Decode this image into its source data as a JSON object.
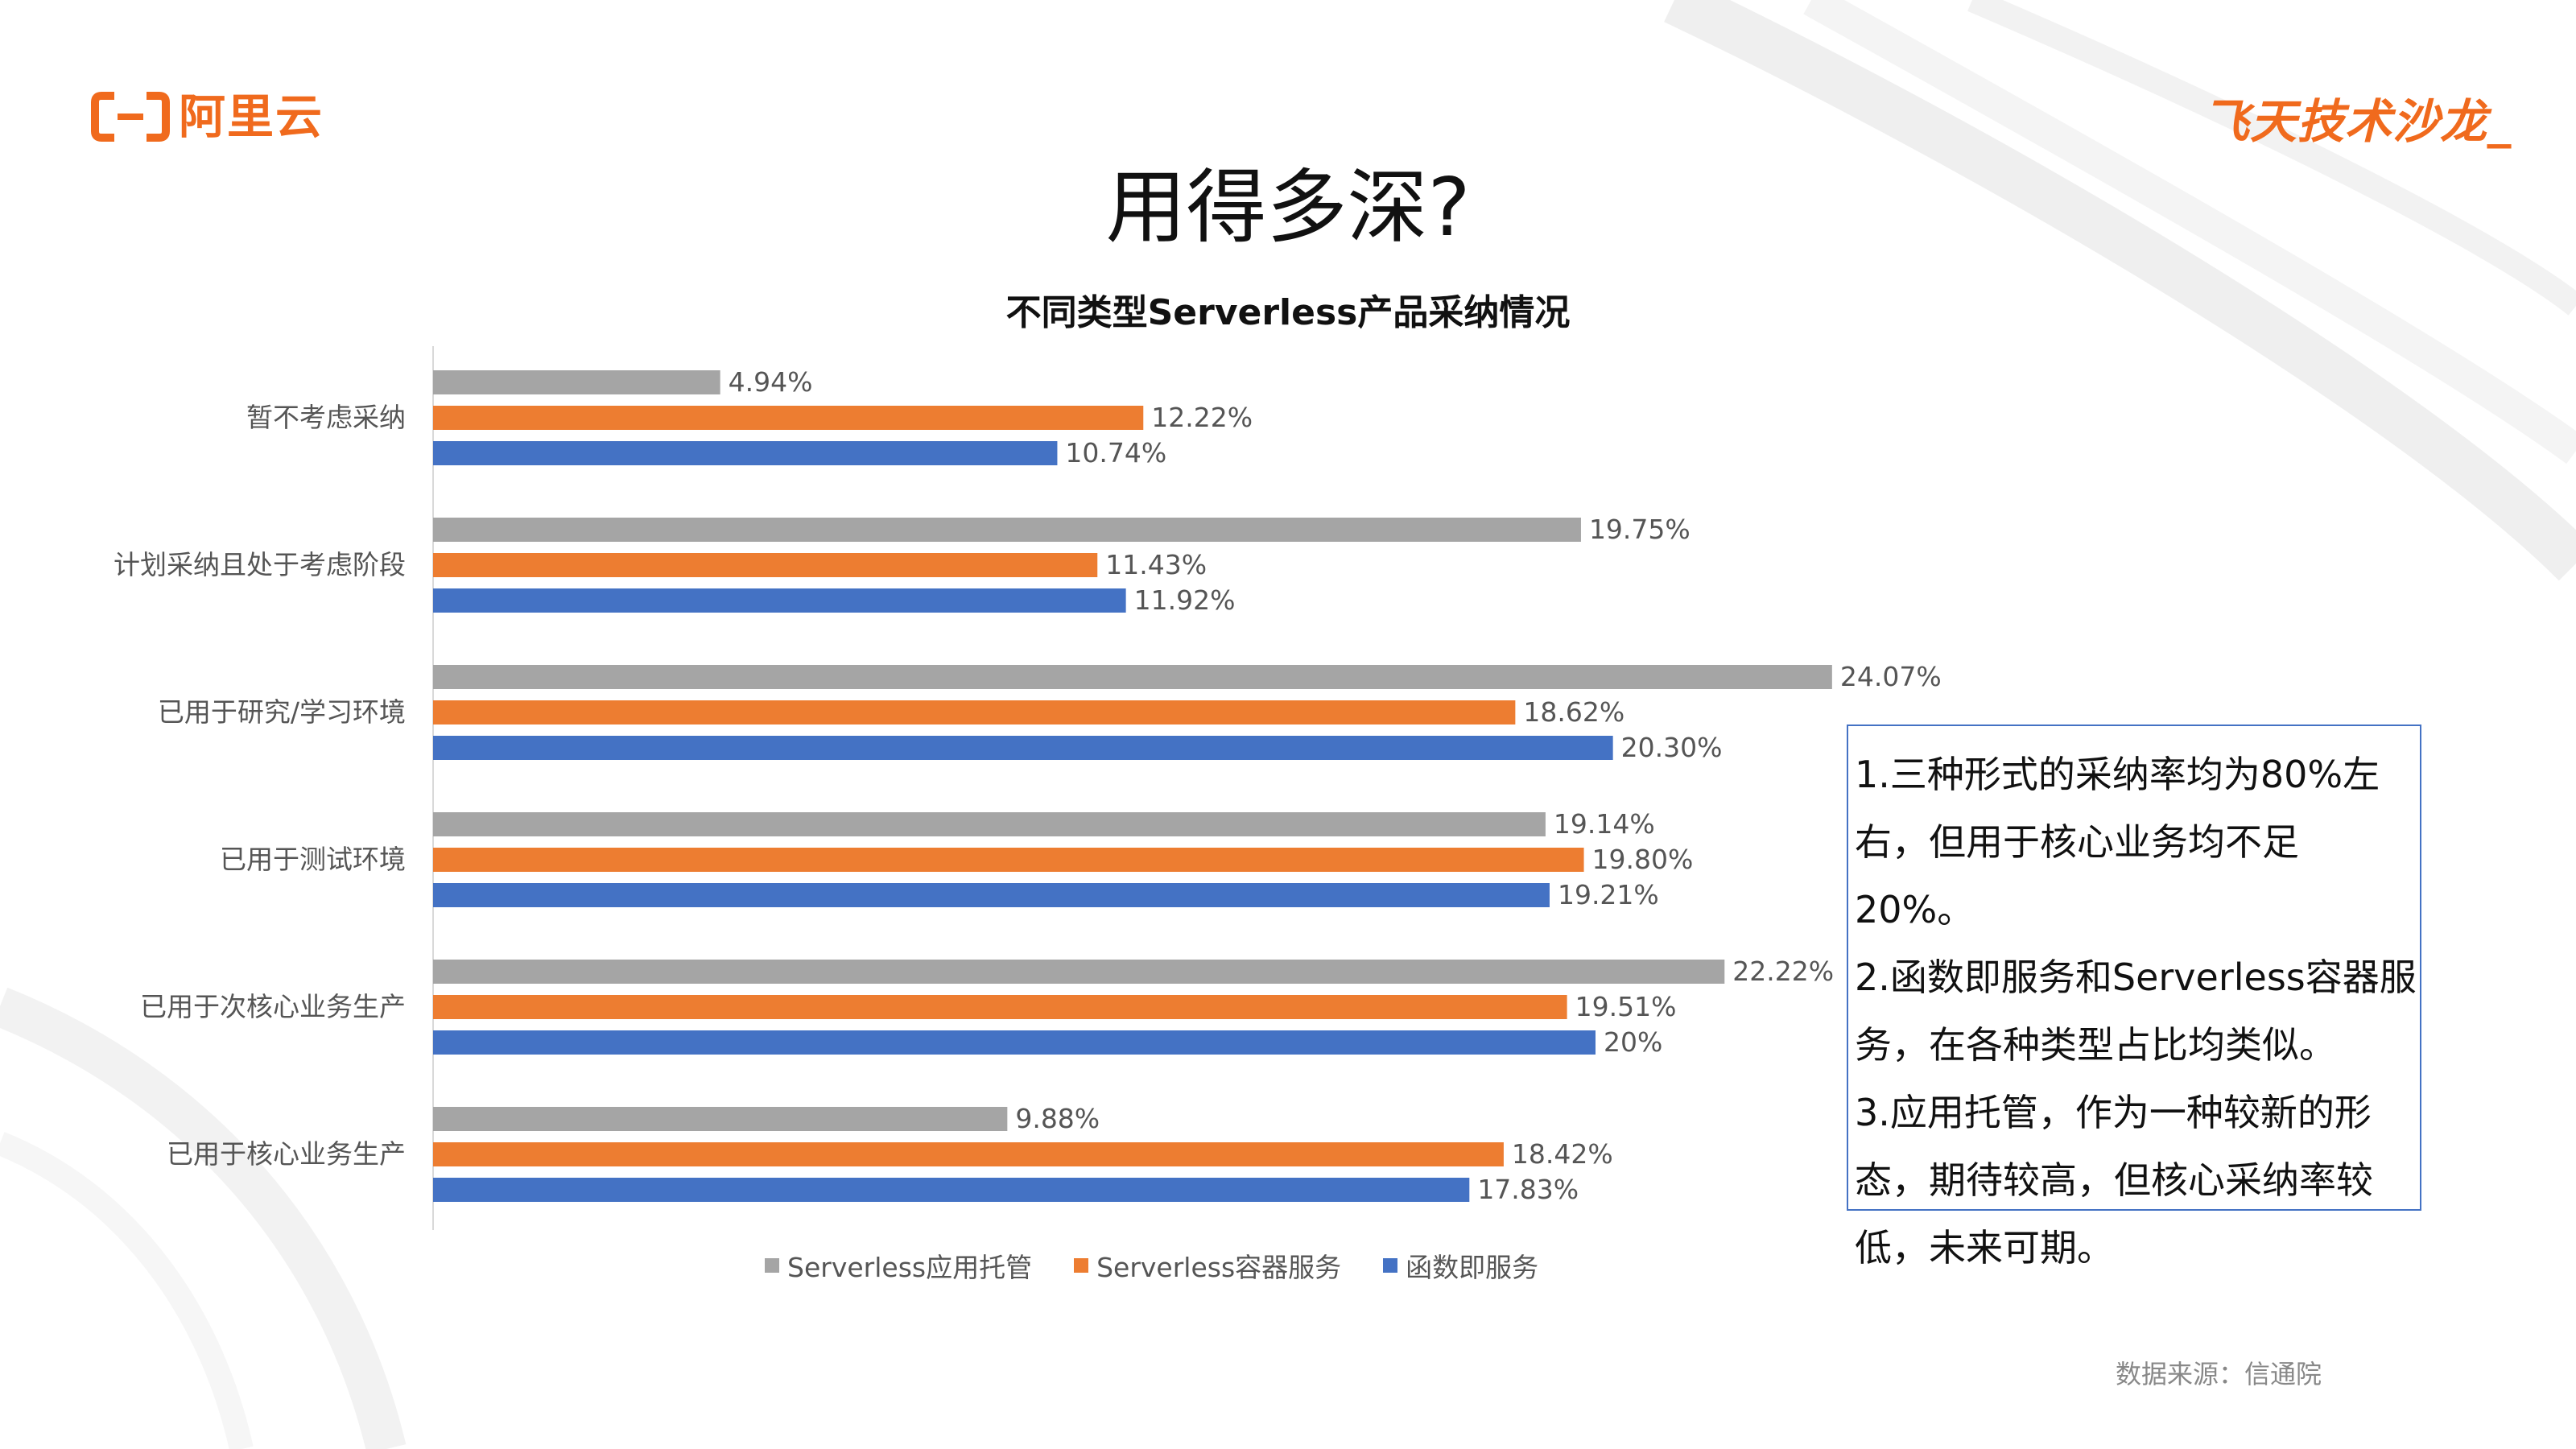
{
  "brand": {
    "left_logo": "阿里云",
    "right_logo": "飞天技术沙龙_"
  },
  "page_title": "用得多深?",
  "chart_data": {
    "type": "bar",
    "orientation": "horizontal",
    "title": "不同类型Serverless产品采纳情况",
    "categories": [
      "暂不考虑采纳",
      "计划采纳且处于考虑阶段",
      "已用于研究/学习环境",
      "已用于测试环境",
      "已用于次核心业务生产",
      "已用于核心业务生产"
    ],
    "series": [
      {
        "name": "Serverless应用托管",
        "color": "#a5a5a5",
        "values": [
          4.94,
          19.75,
          24.07,
          19.14,
          22.22,
          9.88
        ],
        "labels": [
          "4.94%",
          "19.75%",
          "24.07%",
          "19.14%",
          "22.22%",
          "9.88%"
        ]
      },
      {
        "name": "Serverless容器服务",
        "color": "#ed7d31",
        "values": [
          12.22,
          11.43,
          18.62,
          19.8,
          19.51,
          18.42
        ],
        "labels": [
          "12.22%",
          "11.43%",
          "18.62%",
          "19.80%",
          "19.51%",
          "18.42%"
        ]
      },
      {
        "name": "函数即服务",
        "color": "#4472c4",
        "values": [
          10.74,
          11.92,
          20.3,
          19.21,
          20,
          17.83
        ],
        "labels": [
          "10.74%",
          "11.92%",
          "20.30%",
          "19.21%",
          "20%",
          "17.83%"
        ]
      }
    ],
    "legend": "bottom"
  },
  "notes": [
    "1.三种形式的采纳率均为80%左",
    "右，但用于核心业务均不足20%。",
    "2.函数即服务和Serverless容器服",
    "务，在各种类型占比均类似。",
    "3.应用托管，作为一种较新的形",
    "态，期待较高，但核心采纳率较",
    "低，未来可期。"
  ],
  "source": "数据来源：信通院"
}
